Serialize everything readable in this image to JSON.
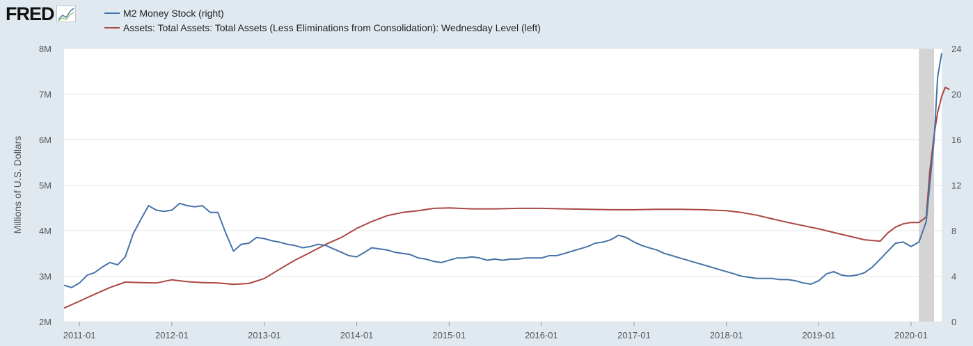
{
  "logo": {
    "text": "FRED",
    "mark": "fred-graph-icon"
  },
  "colors": {
    "m2": "#4572a7",
    "assets": "#aa4643",
    "recession": "#d4d4d4",
    "grid": "#e6e6e6",
    "background": "#e1e9f0",
    "plot_bg": "#ffffff"
  },
  "legend": [
    {
      "label": "M2 Money Stock (right)",
      "color": "#4572a7"
    },
    {
      "label": "Assets: Total Assets: Total Assets (Less Eliminations from Consolidation): Wednesday Level (left)",
      "color": "#aa4643"
    }
  ],
  "chart_data": {
    "type": "line",
    "ylabel_left": "Millions of U.S. Dollars",
    "ylabel_right": "",
    "grid": true,
    "legend_placement": "top-left",
    "x_axis": {
      "range": [
        "2010-11-01",
        "2020-05-01"
      ],
      "tick_labels": [
        "2011-01",
        "2012-01",
        "2013-01",
        "2014-01",
        "2015-01",
        "2016-01",
        "2017-01",
        "2018-01",
        "2019-01",
        "2020-01"
      ]
    },
    "y_left": {
      "range": [
        2000000,
        8000000
      ],
      "tick_labels": [
        "2M",
        "3M",
        "4M",
        "5M",
        "6M",
        "7M",
        "8M"
      ]
    },
    "y_right": {
      "range": [
        0,
        24
      ],
      "tick_labels": [
        "0",
        "4",
        "8",
        "12",
        "16",
        "20",
        "24"
      ]
    },
    "recession": [
      "2020-02-01",
      "2020-04-01"
    ],
    "series": [
      {
        "name": "M2 Money Stock (right)",
        "axis": "right",
        "points": [
          [
            "2010-11-01",
            3.2
          ],
          [
            "2010-12-01",
            3.0
          ],
          [
            "2011-01-01",
            3.4
          ],
          [
            "2011-02-01",
            4.1
          ],
          [
            "2011-03-01",
            4.3
          ],
          [
            "2011-04-01",
            4.8
          ],
          [
            "2011-05-01",
            5.2
          ],
          [
            "2011-06-01",
            5.0
          ],
          [
            "2011-07-01",
            5.7
          ],
          [
            "2011-08-01",
            7.7
          ],
          [
            "2011-09-01",
            9.0
          ],
          [
            "2011-10-01",
            10.2
          ],
          [
            "2011-11-01",
            9.8
          ],
          [
            "2011-12-01",
            9.7
          ],
          [
            "2012-01-01",
            9.8
          ],
          [
            "2012-02-01",
            10.4
          ],
          [
            "2012-03-01",
            10.2
          ],
          [
            "2012-04-01",
            10.1
          ],
          [
            "2012-05-01",
            10.2
          ],
          [
            "2012-06-01",
            9.6
          ],
          [
            "2012-07-01",
            9.6
          ],
          [
            "2012-08-01",
            7.8
          ],
          [
            "2012-09-01",
            6.2
          ],
          [
            "2012-10-01",
            6.8
          ],
          [
            "2012-11-01",
            6.9
          ],
          [
            "2012-12-01",
            7.4
          ],
          [
            "2013-01-01",
            7.3
          ],
          [
            "2013-02-01",
            7.1
          ],
          [
            "2013-03-01",
            7.0
          ],
          [
            "2013-04-01",
            6.8
          ],
          [
            "2013-05-01",
            6.7
          ],
          [
            "2013-06-01",
            6.5
          ],
          [
            "2013-07-01",
            6.6
          ],
          [
            "2013-08-01",
            6.8
          ],
          [
            "2013-09-01",
            6.7
          ],
          [
            "2013-10-01",
            6.4
          ],
          [
            "2013-11-01",
            6.1
          ],
          [
            "2013-12-01",
            5.8
          ],
          [
            "2014-01-01",
            5.7
          ],
          [
            "2014-02-01",
            6.1
          ],
          [
            "2014-03-01",
            6.5
          ],
          [
            "2014-04-01",
            6.4
          ],
          [
            "2014-05-01",
            6.3
          ],
          [
            "2014-06-01",
            6.1
          ],
          [
            "2014-07-01",
            6.0
          ],
          [
            "2014-08-01",
            5.9
          ],
          [
            "2014-09-01",
            5.6
          ],
          [
            "2014-10-01",
            5.5
          ],
          [
            "2014-11-01",
            5.3
          ],
          [
            "2014-12-01",
            5.2
          ],
          [
            "2015-01-01",
            5.4
          ],
          [
            "2015-02-01",
            5.6
          ],
          [
            "2015-03-01",
            5.6
          ],
          [
            "2015-04-01",
            5.7
          ],
          [
            "2015-05-01",
            5.6
          ],
          [
            "2015-06-01",
            5.4
          ],
          [
            "2015-07-01",
            5.5
          ],
          [
            "2015-08-01",
            5.4
          ],
          [
            "2015-09-01",
            5.5
          ],
          [
            "2015-10-01",
            5.5
          ],
          [
            "2015-11-01",
            5.6
          ],
          [
            "2015-12-01",
            5.6
          ],
          [
            "2016-01-01",
            5.6
          ],
          [
            "2016-02-01",
            5.8
          ],
          [
            "2016-03-01",
            5.8
          ],
          [
            "2016-04-01",
            6.0
          ],
          [
            "2016-05-01",
            6.2
          ],
          [
            "2016-06-01",
            6.4
          ],
          [
            "2016-07-01",
            6.6
          ],
          [
            "2016-08-01",
            6.9
          ],
          [
            "2016-09-01",
            7.0
          ],
          [
            "2016-10-01",
            7.2
          ],
          [
            "2016-11-01",
            7.6
          ],
          [
            "2016-12-01",
            7.4
          ],
          [
            "2017-01-01",
            7.0
          ],
          [
            "2017-02-01",
            6.7
          ],
          [
            "2017-03-01",
            6.5
          ],
          [
            "2017-04-01",
            6.3
          ],
          [
            "2017-05-01",
            6.0
          ],
          [
            "2017-06-01",
            5.8
          ],
          [
            "2017-07-01",
            5.6
          ],
          [
            "2017-08-01",
            5.4
          ],
          [
            "2017-09-01",
            5.2
          ],
          [
            "2017-10-01",
            5.0
          ],
          [
            "2017-11-01",
            4.8
          ],
          [
            "2017-12-01",
            4.6
          ],
          [
            "2018-01-01",
            4.4
          ],
          [
            "2018-02-01",
            4.2
          ],
          [
            "2018-03-01",
            4.0
          ],
          [
            "2018-04-01",
            3.9
          ],
          [
            "2018-05-01",
            3.8
          ],
          [
            "2018-06-01",
            3.8
          ],
          [
            "2018-07-01",
            3.8
          ],
          [
            "2018-08-01",
            3.7
          ],
          [
            "2018-09-01",
            3.7
          ],
          [
            "2018-10-01",
            3.6
          ],
          [
            "2018-11-01",
            3.4
          ],
          [
            "2018-12-01",
            3.3
          ],
          [
            "2019-01-01",
            3.6
          ],
          [
            "2019-02-01",
            4.2
          ],
          [
            "2019-03-01",
            4.4
          ],
          [
            "2019-04-01",
            4.1
          ],
          [
            "2019-05-01",
            4.0
          ],
          [
            "2019-06-01",
            4.1
          ],
          [
            "2019-07-01",
            4.3
          ],
          [
            "2019-08-01",
            4.8
          ],
          [
            "2019-09-01",
            5.5
          ],
          [
            "2019-10-01",
            6.2
          ],
          [
            "2019-11-01",
            6.9
          ],
          [
            "2019-12-01",
            7.0
          ],
          [
            "2020-01-01",
            6.6
          ],
          [
            "2020-02-01",
            7.0
          ],
          [
            "2020-03-01",
            8.8
          ],
          [
            "2020-04-01",
            16.0
          ],
          [
            "2020-04-15",
            21.5
          ],
          [
            "2020-05-01",
            23.6
          ]
        ]
      },
      {
        "name": "Assets: Total Assets: Total Assets (Less Eliminations from Consolidation): Wednesday Level (left)",
        "axis": "left",
        "points": [
          [
            "2010-11-01",
            2300000
          ],
          [
            "2011-01-01",
            2450000
          ],
          [
            "2011-03-01",
            2600000
          ],
          [
            "2011-05-01",
            2750000
          ],
          [
            "2011-07-01",
            2870000
          ],
          [
            "2011-09-01",
            2860000
          ],
          [
            "2011-11-01",
            2850000
          ],
          [
            "2012-01-01",
            2920000
          ],
          [
            "2012-03-01",
            2880000
          ],
          [
            "2012-05-01",
            2860000
          ],
          [
            "2012-07-01",
            2850000
          ],
          [
            "2012-09-01",
            2820000
          ],
          [
            "2012-11-01",
            2840000
          ],
          [
            "2013-01-01",
            2950000
          ],
          [
            "2013-03-01",
            3150000
          ],
          [
            "2013-05-01",
            3350000
          ],
          [
            "2013-07-01",
            3520000
          ],
          [
            "2013-09-01",
            3700000
          ],
          [
            "2013-11-01",
            3850000
          ],
          [
            "2014-01-01",
            4050000
          ],
          [
            "2014-03-01",
            4200000
          ],
          [
            "2014-05-01",
            4330000
          ],
          [
            "2014-07-01",
            4400000
          ],
          [
            "2014-09-01",
            4440000
          ],
          [
            "2014-11-01",
            4490000
          ],
          [
            "2015-01-01",
            4500000
          ],
          [
            "2015-04-01",
            4480000
          ],
          [
            "2015-07-01",
            4480000
          ],
          [
            "2015-10-01",
            4490000
          ],
          [
            "2016-01-01",
            4490000
          ],
          [
            "2016-04-01",
            4480000
          ],
          [
            "2016-07-01",
            4470000
          ],
          [
            "2016-10-01",
            4460000
          ],
          [
            "2017-01-01",
            4460000
          ],
          [
            "2017-04-01",
            4470000
          ],
          [
            "2017-07-01",
            4470000
          ],
          [
            "2017-10-01",
            4460000
          ],
          [
            "2018-01-01",
            4440000
          ],
          [
            "2018-03-01",
            4400000
          ],
          [
            "2018-05-01",
            4340000
          ],
          [
            "2018-07-01",
            4260000
          ],
          [
            "2018-09-01",
            4180000
          ],
          [
            "2018-11-01",
            4110000
          ],
          [
            "2019-01-01",
            4040000
          ],
          [
            "2019-03-01",
            3960000
          ],
          [
            "2019-05-01",
            3880000
          ],
          [
            "2019-07-01",
            3800000
          ],
          [
            "2019-09-01",
            3770000
          ],
          [
            "2019-10-01",
            3950000
          ],
          [
            "2019-11-01",
            4080000
          ],
          [
            "2019-12-01",
            4150000
          ],
          [
            "2020-01-01",
            4180000
          ],
          [
            "2020-02-01",
            4180000
          ],
          [
            "2020-03-01",
            4300000
          ],
          [
            "2020-03-15",
            5300000
          ],
          [
            "2020-04-01",
            6100000
          ],
          [
            "2020-04-15",
            6600000
          ],
          [
            "2020-05-01",
            6950000
          ],
          [
            "2020-05-15",
            7150000
          ],
          [
            "2020-06-01",
            7100000
          ]
        ]
      }
    ]
  }
}
